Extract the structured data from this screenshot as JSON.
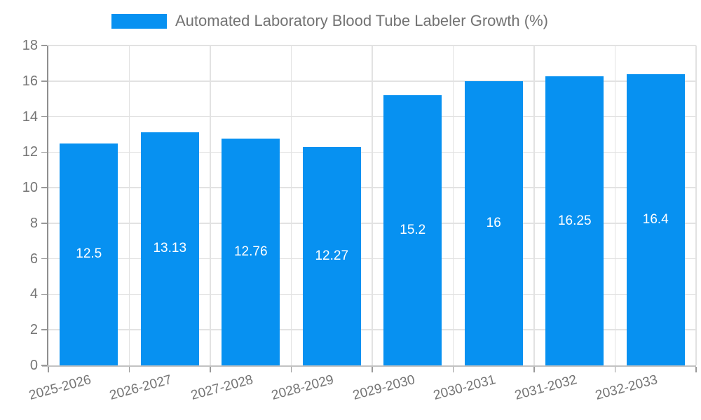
{
  "legend": {
    "label": "Automated Laboratory Blood Tube Labeler Growth (%)"
  },
  "chart_data": {
    "type": "bar",
    "categories": [
      "2025-2026",
      "2026-2027",
      "2027-2028",
      "2028-2029",
      "2029-2030",
      "2030-2031",
      "2031-2032",
      "2032-2033"
    ],
    "values": [
      12.5,
      13.13,
      12.76,
      12.27,
      15.2,
      16,
      16.25,
      16.4
    ],
    "value_labels": [
      "12.5",
      "13.13",
      "12.76",
      "12.27",
      "15.2",
      "16",
      "16.25",
      "16.4"
    ],
    "title": "Automated Laboratory Blood Tube Labeler Growth (%)",
    "xlabel": "",
    "ylabel": "",
    "ylim": [
      0,
      18
    ],
    "ytick_step": 2,
    "grid": true,
    "legend_position": "top-center",
    "bar_color": "#0791F1",
    "value_label_color": "#ffffff",
    "axis_text_color": "#757575",
    "gridline_color": "#e2e2e2",
    "x_label_rotation_deg": -15
  }
}
